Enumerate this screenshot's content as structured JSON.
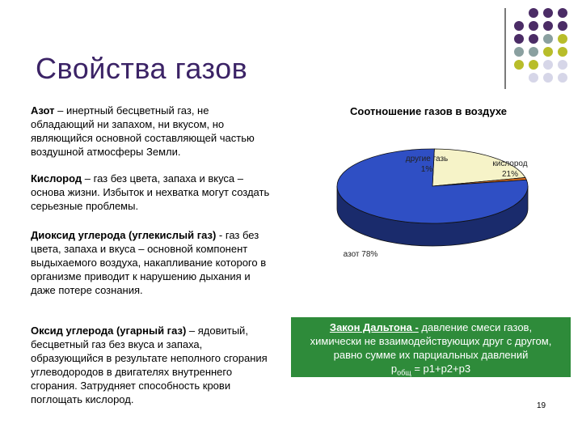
{
  "title": "Свойства газов",
  "paragraphs": {
    "azot": {
      "term": "Азот",
      "text": " – инертный бесцветный газ, не обладающий ни запахом, ни вкусом, но являющийся основной составляющей частью воздушной атмосферы Земли."
    },
    "kislorod": {
      "term": "Кислород",
      "text": " – газ без цвета, запаха и вкуса – основа жизни. Избыток и нехватка могут создать серьезные проблемы."
    },
    "dioxid": {
      "term": "Диоксид углерода (углекислый газ)",
      "text": " - газ без цвета, запаха и вкуса – основной компонент выдыхаемого воздуха, накапливание которого в организме приводит к нарушению дыхания и даже потере сознания."
    },
    "oxid": {
      "term": "Оксид углерода (угарный газ)",
      "text": " – ядовитый, бесцветный газ без вкуса и запаха, образующийся в результате неполного сгорания углеводородов в двигателях внутреннего сгорания. Затрудняет способность крови поглощать кислород."
    }
  },
  "chart_data": {
    "type": "pie",
    "title": "Соотношение газов в воздухе",
    "slices": [
      {
        "label": "азот",
        "value": 78,
        "color": "#2f4fc4"
      },
      {
        "label": "кислород",
        "value": 21,
        "color": "#f6f3c8"
      },
      {
        "label": "другие газы",
        "value": 1,
        "color": "#e07020"
      }
    ],
    "labels": {
      "other": "другие газь",
      "other_pct": "1%",
      "oxygen": "кислород",
      "oxygen_pct": "21%",
      "nitrogen": "азот 78%"
    }
  },
  "law": {
    "term": "Закон Дальтона -",
    "line1": " давление смеси газов,",
    "line2": "химически не взаимодействующих друг с другом,",
    "line3": "равно сумме их парциальных давлений",
    "formula_p": "p",
    "formula_sub": "общ",
    "formula_rest": " = p1+p2+p3"
  },
  "page_number": "19",
  "colors": {
    "title": "#3b2366",
    "law_bg": "#2e8b3a",
    "dot_purple": "#4b2c66",
    "dot_gray": "#8aa0a0",
    "dot_olive": "#b8bd2a",
    "dot_light": "#d6d6e8"
  }
}
